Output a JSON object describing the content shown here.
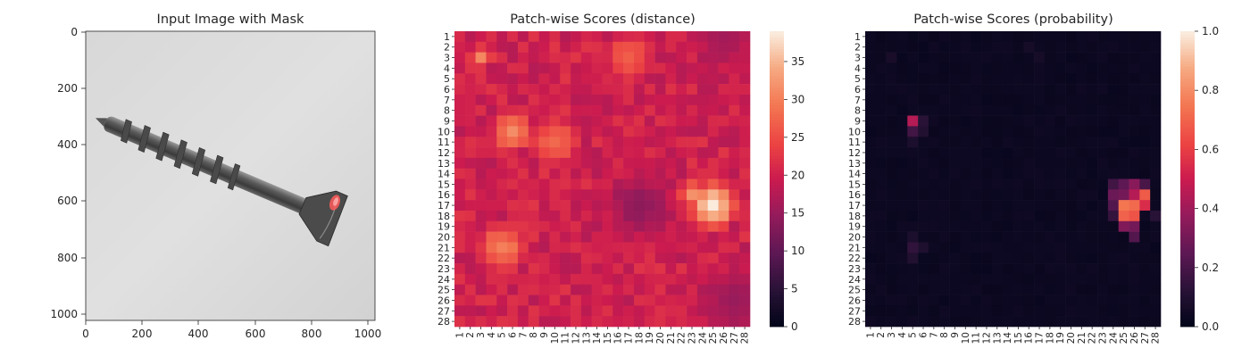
{
  "panels": [
    {
      "title": "Input Image with Mask",
      "x_ticks": [
        "0",
        "200",
        "400",
        "600",
        "800",
        "1000"
      ],
      "y_ticks": [
        "0",
        "200",
        "400",
        "600",
        "800",
        "1000"
      ]
    },
    {
      "title": "Patch-wise Scores (distance)",
      "colorbar_ticks": [
        "0",
        "5",
        "10",
        "15",
        "20",
        "25",
        "30",
        "35"
      ]
    },
    {
      "title": "Patch-wise Scores (probability)",
      "colorbar_ticks": [
        "0.0",
        "0.2",
        "0.4",
        "0.6",
        "0.8",
        "1.0"
      ]
    }
  ],
  "chart_data": [
    {
      "type": "image",
      "title": "Input Image with Mask",
      "xlim": [
        0,
        1024
      ],
      "ylim": [
        1024,
        0
      ],
      "x_ticks": [
        0,
        200,
        400,
        600,
        800,
        1000
      ],
      "y_ticks": [
        0,
        200,
        400,
        600,
        800,
        1000
      ],
      "content": "grayscale photo of a screw on light background, red mask region near screw head"
    },
    {
      "type": "heatmap",
      "title": "Patch-wise Scores (distance)",
      "grid": [
        28,
        28
      ],
      "x_labels": [
        "1",
        "2",
        "3",
        "4",
        "5",
        "6",
        "7",
        "8",
        "9",
        "10",
        "11",
        "12",
        "13",
        "14",
        "15",
        "16",
        "17",
        "18",
        "19",
        "20",
        "21",
        "22",
        "23",
        "24",
        "25",
        "26",
        "27",
        "28"
      ],
      "y_labels": [
        "1",
        "2",
        "3",
        "4",
        "5",
        "6",
        "7",
        "8",
        "9",
        "10",
        "11",
        "12",
        "13",
        "14",
        "15",
        "16",
        "17",
        "18",
        "19",
        "20",
        "21",
        "22",
        "23",
        "24",
        "25",
        "26",
        "27",
        "28"
      ],
      "colorbar_range": [
        0,
        39
      ],
      "colormap": "rocket",
      "base_value": 20,
      "hotspots": [
        {
          "row": 17,
          "col": 25,
          "value": 39,
          "spread": 2.2
        },
        {
          "row": 16,
          "col": 23,
          "value": 32,
          "spread": 1.6
        },
        {
          "row": 10,
          "col": 6,
          "value": 31,
          "spread": 2.3
        },
        {
          "row": 11,
          "col": 10,
          "value": 28,
          "spread": 3.0
        },
        {
          "row": 21,
          "col": 5,
          "value": 30,
          "spread": 2.8
        },
        {
          "row": 3,
          "col": 3,
          "value": 30,
          "spread": 1.4
        },
        {
          "row": 3,
          "col": 17,
          "value": 27,
          "spread": 3.0
        }
      ],
      "lowspots": [
        {
          "row": 17,
          "col": 18,
          "value": 14,
          "spread": 2.0
        },
        {
          "row": 26,
          "col": 27,
          "value": 15,
          "spread": 2.0
        },
        {
          "row": 1,
          "col": 26,
          "value": 16,
          "spread": 2.0
        }
      ]
    },
    {
      "type": "heatmap",
      "title": "Patch-wise Scores (probability)",
      "grid": [
        28,
        28
      ],
      "x_labels": [
        "1",
        "2",
        "3",
        "4",
        "5",
        "6",
        "7",
        "8",
        "9",
        "10",
        "11",
        "12",
        "13",
        "14",
        "15",
        "16",
        "17",
        "18",
        "19",
        "20",
        "21",
        "22",
        "23",
        "24",
        "25",
        "26",
        "27",
        "28"
      ],
      "y_labels": [
        "1",
        "2",
        "3",
        "4",
        "5",
        "6",
        "7",
        "8",
        "9",
        "10",
        "11",
        "12",
        "13",
        "14",
        "15",
        "16",
        "17",
        "18",
        "19",
        "20",
        "21",
        "22",
        "23",
        "24",
        "25",
        "26",
        "27",
        "28"
      ],
      "colorbar_range": [
        0.0,
        1.0
      ],
      "colormap": "rocket",
      "base_value": 0.02,
      "cells": [
        {
          "row": 17,
          "col": 25,
          "value": 0.75
        },
        {
          "row": 17,
          "col": 26,
          "value": 0.72
        },
        {
          "row": 18,
          "col": 25,
          "value": 0.7
        },
        {
          "row": 18,
          "col": 26,
          "value": 0.66
        },
        {
          "row": 16,
          "col": 27,
          "value": 0.68
        },
        {
          "row": 17,
          "col": 27,
          "value": 0.55
        },
        {
          "row": 16,
          "col": 26,
          "value": 0.45
        },
        {
          "row": 16,
          "col": 25,
          "value": 0.3
        },
        {
          "row": 15,
          "col": 25,
          "value": 0.25
        },
        {
          "row": 15,
          "col": 26,
          "value": 0.35
        },
        {
          "row": 16,
          "col": 24,
          "value": 0.28
        },
        {
          "row": 17,
          "col": 24,
          "value": 0.22
        },
        {
          "row": 18,
          "col": 24,
          "value": 0.15
        },
        {
          "row": 19,
          "col": 25,
          "value": 0.33
        },
        {
          "row": 19,
          "col": 26,
          "value": 0.3
        },
        {
          "row": 20,
          "col": 26,
          "value": 0.22
        },
        {
          "row": 15,
          "col": 24,
          "value": 0.18
        },
        {
          "row": 15,
          "col": 27,
          "value": 0.2
        },
        {
          "row": 18,
          "col": 28,
          "value": 0.12
        },
        {
          "row": 9,
          "col": 5,
          "value": 0.45
        },
        {
          "row": 10,
          "col": 5,
          "value": 0.18
        },
        {
          "row": 9,
          "col": 6,
          "value": 0.12
        },
        {
          "row": 10,
          "col": 6,
          "value": 0.1
        },
        {
          "row": 11,
          "col": 5,
          "value": 0.08
        },
        {
          "row": 21,
          "col": 5,
          "value": 0.14
        },
        {
          "row": 22,
          "col": 5,
          "value": 0.1
        },
        {
          "row": 20,
          "col": 5,
          "value": 0.08
        },
        {
          "row": 21,
          "col": 6,
          "value": 0.09
        },
        {
          "row": 3,
          "col": 3,
          "value": 0.07
        },
        {
          "row": 2,
          "col": 16,
          "value": 0.06
        },
        {
          "row": 3,
          "col": 17,
          "value": 0.06
        }
      ]
    }
  ]
}
